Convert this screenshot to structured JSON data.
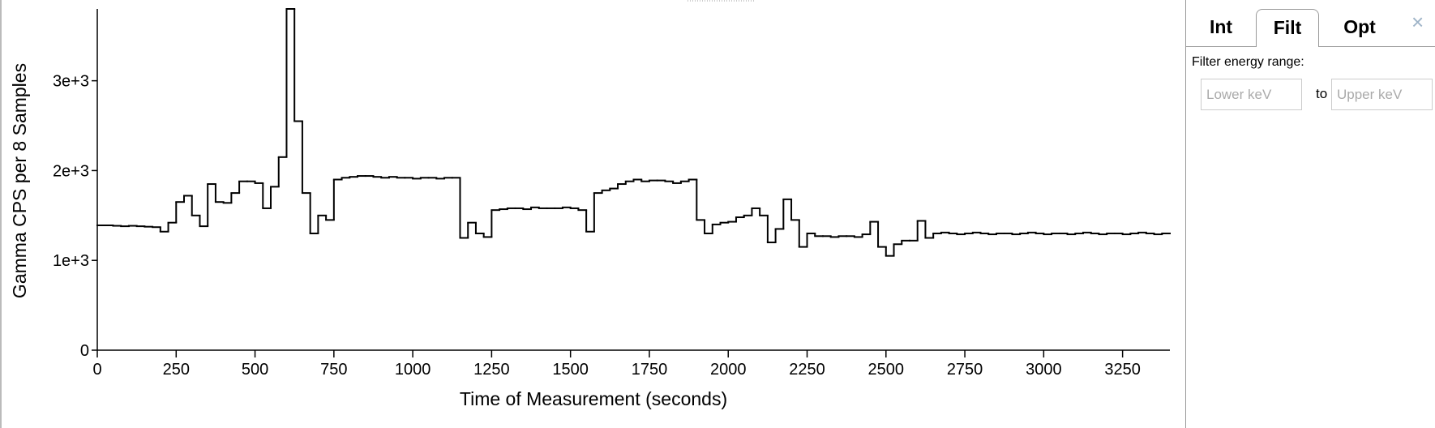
{
  "chart_data": {
    "type": "histogram",
    "x_label": "Time of Measurement (seconds)",
    "y_label": "Gamma CPS per 8 Samples",
    "color": "#000000",
    "bins": [
      0,
      25,
      50,
      75,
      100,
      125,
      150,
      175,
      200,
      225,
      250,
      275,
      300,
      325,
      350,
      375,
      400,
      425,
      450,
      475,
      500,
      525,
      550,
      575,
      600,
      625,
      650,
      675,
      700,
      725,
      750,
      775,
      800,
      825,
      850,
      875,
      900,
      925,
      950,
      975,
      1000,
      1025,
      1050,
      1075,
      1100,
      1125,
      1150,
      1175,
      1200,
      1225,
      1250,
      1275,
      1300,
      1325,
      1350,
      1375,
      1400,
      1425,
      1450,
      1475,
      1500,
      1525,
      1550,
      1575,
      1600,
      1625,
      1650,
      1675,
      1700,
      1725,
      1750,
      1775,
      1800,
      1825,
      1850,
      1875,
      1900,
      1925,
      1950,
      1975,
      2000,
      2025,
      2050,
      2075,
      2100,
      2125,
      2150,
      2175,
      2200,
      2225,
      2250,
      2275,
      2300,
      2325,
      2350,
      2375,
      2400,
      2425,
      2450,
      2475,
      2500,
      2525,
      2550,
      2575,
      2600,
      2625,
      2650,
      2675,
      2700,
      2725,
      2750,
      2775,
      2800,
      2825,
      2850,
      2875,
      2900,
      2925,
      2950,
      2975,
      3000,
      3025,
      3050,
      3075,
      3100,
      3125,
      3150,
      3175,
      3200,
      3225,
      3250,
      3275,
      3300,
      3325,
      3350,
      3375,
      3400
    ],
    "values": [
      1390,
      1390,
      1385,
      1380,
      1385,
      1380,
      1375,
      1370,
      1320,
      1420,
      1650,
      1720,
      1500,
      1380,
      1850,
      1650,
      1640,
      1750,
      1880,
      1880,
      1860,
      1580,
      1820,
      2150,
      3800,
      2550,
      1750,
      1300,
      1500,
      1450,
      1900,
      1920,
      1930,
      1940,
      1940,
      1930,
      1920,
      1930,
      1920,
      1920,
      1910,
      1920,
      1920,
      1910,
      1920,
      1920,
      1250,
      1420,
      1300,
      1260,
      1560,
      1570,
      1580,
      1580,
      1570,
      1590,
      1580,
      1580,
      1580,
      1590,
      1580,
      1560,
      1320,
      1750,
      1780,
      1800,
      1850,
      1880,
      1900,
      1880,
      1890,
      1890,
      1880,
      1860,
      1880,
      1900,
      1450,
      1300,
      1400,
      1420,
      1430,
      1480,
      1500,
      1580,
      1500,
      1200,
      1350,
      1680,
      1450,
      1150,
      1300,
      1270,
      1270,
      1260,
      1270,
      1270,
      1260,
      1290,
      1430,
      1150,
      1050,
      1180,
      1220,
      1220,
      1440,
      1250,
      1300,
      1310,
      1300,
      1290,
      1300,
      1310,
      1300,
      1290,
      1300,
      1300,
      1290,
      1300,
      1310,
      1300,
      1290,
      1300,
      1300,
      1290,
      1300,
      1310,
      1300,
      1290,
      1300,
      1300,
      1290,
      1300,
      1310,
      1300,
      1290,
      1300
    ],
    "xlim": [
      0,
      3400
    ],
    "xticks": [
      0,
      250,
      500,
      750,
      1000,
      1250,
      1500,
      1750,
      2000,
      2250,
      2500,
      2750,
      3000,
      3250
    ],
    "ylim": [
      0,
      3800
    ],
    "yticks": [
      0,
      {
        "value": 1000,
        "label": "1e+3"
      },
      {
        "value": 2000,
        "label": "2e+3"
      },
      {
        "value": 3000,
        "label": "3e+3"
      }
    ]
  },
  "panel": {
    "tabs": [
      "Int",
      "Filt",
      "Opt"
    ],
    "close": "×",
    "filter_label": "Filter energy range:",
    "lower_placeholder": "Lower keV",
    "separator": "to",
    "upper_placeholder": "Upper keV"
  }
}
